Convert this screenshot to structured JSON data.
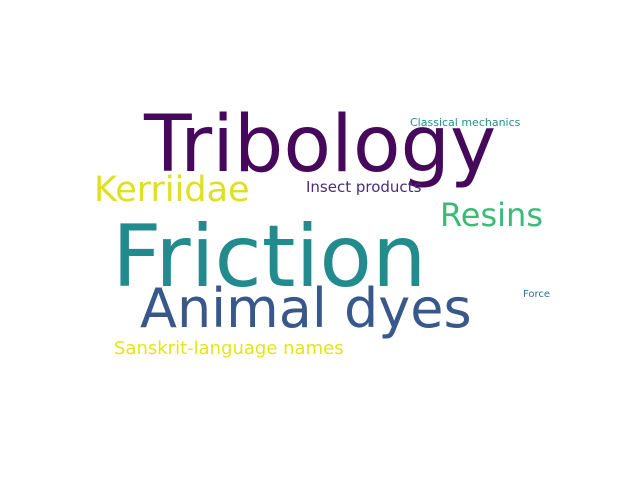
{
  "words": [
    {
      "text": "Friction",
      "color": "#238a8d"
    },
    {
      "text": "Tribology",
      "color": "#45085a"
    },
    {
      "text": "Animal dyes",
      "color": "#38588c"
    },
    {
      "text": "Kerriidae",
      "color": "#dfe023"
    },
    {
      "text": "Resins",
      "color": "#3bbb75"
    },
    {
      "text": "Insect products",
      "color": "#472d7b"
    },
    {
      "text": "Sanskrit-language names",
      "color": "#e5e419"
    },
    {
      "text": "Classical mechanics",
      "color": "#21918c"
    },
    {
      "text": "Force",
      "color": "#2c728e"
    }
  ]
}
